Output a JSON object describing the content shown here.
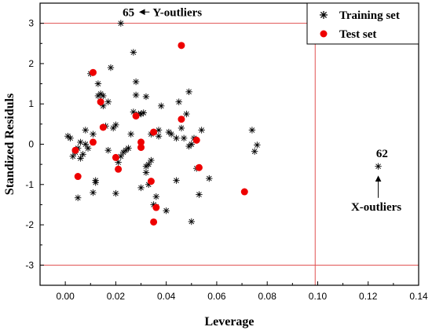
{
  "chart_data": {
    "type": "scatter",
    "title": "",
    "xlabel": "Leverage",
    "ylabel": "Standized Residuls",
    "xlim": [
      -0.01,
      0.14
    ],
    "ylim": [
      -3.5,
      3.5
    ],
    "xticks": [
      0.0,
      0.02,
      0.04,
      0.06,
      0.08,
      0.1,
      0.12,
      0.14
    ],
    "xtick_labels": [
      "0.00",
      "0.02",
      "0.04",
      "0.06",
      "0.08",
      "0.10",
      "0.12",
      "0.14"
    ],
    "yticks": [
      -3,
      -2,
      -1,
      0,
      1,
      2,
      3
    ],
    "ytick_labels": [
      "-3",
      "-2",
      "-1",
      "0",
      "1",
      "2",
      "3"
    ],
    "grid": false,
    "legend_position": "top-right",
    "reference_lines": {
      "horizontal": [
        3,
        -3
      ],
      "vertical": [
        0.099
      ],
      "color": "#e05050"
    },
    "annotations": [
      {
        "text": "65",
        "x": 0.0255,
        "y": 3.28
      },
      {
        "text": "Y-outliers",
        "x": 0.0427,
        "y": 3.28
      },
      {
        "text": "62",
        "x": 0.1255,
        "y": -0.22
      },
      {
        "text": "X-outliers",
        "x": 0.1232,
        "y": -1.55
      }
    ],
    "series": [
      {
        "name": "Training set",
        "marker": "asterisk",
        "color": "#000000",
        "points": [
          [
            0.001,
            0.2
          ],
          [
            0.002,
            0.15
          ],
          [
            0.003,
            -0.3
          ],
          [
            0.004,
            -0.2
          ],
          [
            0.005,
            -0.1
          ],
          [
            0.006,
            0.05
          ],
          [
            0.006,
            -0.35
          ],
          [
            0.005,
            -1.33
          ],
          [
            0.007,
            -0.25
          ],
          [
            0.008,
            0.0
          ],
          [
            0.008,
            0.35
          ],
          [
            0.009,
            -0.1
          ],
          [
            0.01,
            1.75
          ],
          [
            0.011,
            0.25
          ],
          [
            0.011,
            -1.2
          ],
          [
            0.012,
            -0.95
          ],
          [
            0.012,
            -0.9
          ],
          [
            0.013,
            1.5
          ],
          [
            0.013,
            1.2
          ],
          [
            0.014,
            1.25
          ],
          [
            0.015,
            0.95
          ],
          [
            0.015,
            1.2
          ],
          [
            0.016,
            0.45
          ],
          [
            0.017,
            -0.15
          ],
          [
            0.017,
            1.05
          ],
          [
            0.018,
            1.9
          ],
          [
            0.019,
            0.4
          ],
          [
            0.02,
            0.48
          ],
          [
            0.02,
            -1.22
          ],
          [
            0.021,
            -0.45
          ],
          [
            0.022,
            -0.3
          ],
          [
            0.023,
            -0.2
          ],
          [
            0.024,
            -0.15
          ],
          [
            0.025,
            -0.1
          ],
          [
            0.026,
            0.25
          ],
          [
            0.027,
            0.8
          ],
          [
            0.027,
            2.28
          ],
          [
            0.028,
            1.55
          ],
          [
            0.028,
            1.22
          ],
          [
            0.029,
            0.75
          ],
          [
            0.03,
            -1.08
          ],
          [
            0.03,
            0.75
          ],
          [
            0.031,
            0.78
          ],
          [
            0.032,
            -0.7
          ],
          [
            0.032,
            -0.55
          ],
          [
            0.032,
            1.18
          ],
          [
            0.033,
            -1.0
          ],
          [
            0.033,
            -0.5
          ],
          [
            0.034,
            0.25
          ],
          [
            0.034,
            -0.4
          ],
          [
            0.035,
            -1.5
          ],
          [
            0.035,
            0.3
          ],
          [
            0.036,
            -1.55
          ],
          [
            0.036,
            -1.3
          ],
          [
            0.037,
            0.35
          ],
          [
            0.037,
            0.2
          ],
          [
            0.038,
            0.95
          ],
          [
            0.04,
            -1.65
          ],
          [
            0.041,
            0.3
          ],
          [
            0.042,
            0.25
          ],
          [
            0.044,
            0.15
          ],
          [
            0.044,
            -0.9
          ],
          [
            0.045,
            1.05
          ],
          [
            0.046,
            0.4
          ],
          [
            0.047,
            0.15
          ],
          [
            0.048,
            0.75
          ],
          [
            0.049,
            -0.05
          ],
          [
            0.049,
            1.3
          ],
          [
            0.05,
            -1.92
          ],
          [
            0.05,
            0.0
          ],
          [
            0.051,
            0.15
          ],
          [
            0.052,
            -0.6
          ],
          [
            0.053,
            -1.25
          ],
          [
            0.054,
            0.35
          ],
          [
            0.057,
            -0.85
          ],
          [
            0.074,
            0.35
          ],
          [
            0.075,
            -0.18
          ],
          [
            0.076,
            -0.02
          ],
          [
            0.124,
            -0.55
          ],
          [
            0.022,
            3.0
          ]
        ]
      },
      {
        "name": "Test set",
        "marker": "circle",
        "color": "#ee0000",
        "points": [
          [
            0.004,
            -0.15
          ],
          [
            0.005,
            -0.8
          ],
          [
            0.011,
            1.78
          ],
          [
            0.011,
            0.05
          ],
          [
            0.014,
            1.05
          ],
          [
            0.015,
            0.42
          ],
          [
            0.02,
            -0.33
          ],
          [
            0.021,
            -0.62
          ],
          [
            0.028,
            0.7
          ],
          [
            0.03,
            0.05
          ],
          [
            0.03,
            -0.08
          ],
          [
            0.034,
            -0.92
          ],
          [
            0.035,
            0.3
          ],
          [
            0.035,
            -1.93
          ],
          [
            0.036,
            -1.57
          ],
          [
            0.046,
            2.45
          ],
          [
            0.046,
            0.62
          ],
          [
            0.052,
            0.1
          ],
          [
            0.053,
            -0.58
          ],
          [
            0.071,
            -1.18
          ]
        ]
      }
    ]
  }
}
